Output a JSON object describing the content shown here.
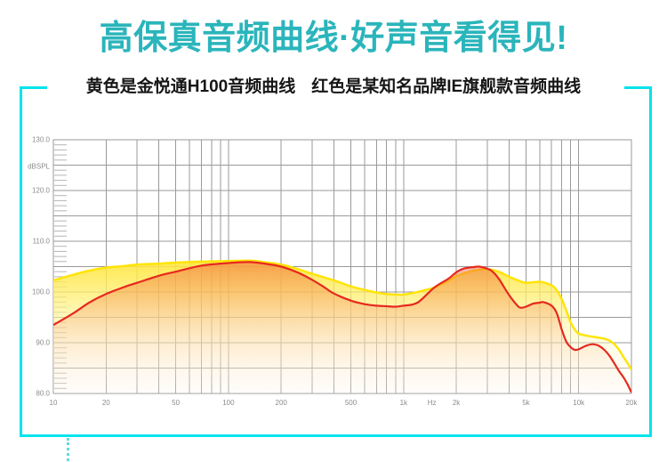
{
  "header": {
    "title": "高保真音频曲线·好声音看得见!",
    "subtitle_left": "黄色是金悦通H100音频曲线",
    "subtitle_right": "红色是某知名品牌IE旗舰款音频曲线"
  },
  "colors": {
    "title_teal": "#2ab5bb",
    "frame_cyan": "#00e4ee",
    "grid": "#9a9a9a",
    "minor_tick": "#b5b5b5",
    "axis_label": "#8c8c8c",
    "yellow_curve": "#ffe400",
    "red_curve": "#e6291f"
  },
  "chart_data": {
    "type": "line",
    "title": "",
    "x_axis": {
      "unit": "Hz",
      "scale": "log",
      "min": 10,
      "max": 20000,
      "tick_values": [
        10,
        20,
        50,
        100,
        200,
        500,
        1000,
        2000,
        5000,
        10000,
        20000
      ],
      "tick_labels": [
        "10",
        "20",
        "50",
        "100",
        "200",
        "500",
        "1k",
        "2k",
        "5k",
        "10k",
        "20k"
      ]
    },
    "y_axis": {
      "unit": "dBSPL",
      "min": 80,
      "max": 130,
      "label_step": 10,
      "grid_step": 5,
      "tick_labels": [
        "80.0",
        "90.0",
        "100.0",
        "110.0",
        "120.0",
        "130.0"
      ]
    },
    "grid": true,
    "legend": "none",
    "series": [
      {
        "name": "金悦通H100 (yellow)",
        "stroke": "#ffe400",
        "stroke_width": 2.4,
        "fill_gradient": [
          [
            0,
            "rgba(255,226,40,0.95)"
          ],
          [
            0.32,
            "rgba(255,238,110,0.72)"
          ],
          [
            0.65,
            "rgba(255,248,195,0.42)"
          ],
          [
            1,
            "rgba(255,253,242,0.12)"
          ]
        ],
        "points": [
          [
            10,
            102.3
          ],
          [
            13,
            103.4
          ],
          [
            16,
            104.2
          ],
          [
            20,
            104.8
          ],
          [
            25,
            105.1
          ],
          [
            30,
            105.4
          ],
          [
            40,
            105.6
          ],
          [
            50,
            105.8
          ],
          [
            70,
            106.0
          ],
          [
            100,
            106.1
          ],
          [
            130,
            106.2
          ],
          [
            160,
            105.9
          ],
          [
            200,
            105.4
          ],
          [
            250,
            104.5
          ],
          [
            300,
            103.6
          ],
          [
            400,
            102.3
          ],
          [
            500,
            101.1
          ],
          [
            600,
            100.4
          ],
          [
            700,
            99.9
          ],
          [
            800,
            99.6
          ],
          [
            900,
            99.5
          ],
          [
            1000,
            99.5
          ],
          [
            1200,
            100.0
          ],
          [
            1500,
            100.9
          ],
          [
            1800,
            102.2
          ],
          [
            2000,
            103.1
          ],
          [
            2500,
            104.2
          ],
          [
            3000,
            104.5
          ],
          [
            3500,
            104.0
          ],
          [
            4000,
            103.0
          ],
          [
            4500,
            102.3
          ],
          [
            5000,
            101.8
          ],
          [
            6000,
            102.0
          ],
          [
            7000,
            101.3
          ],
          [
            7500,
            100.3
          ],
          [
            8000,
            98.6
          ],
          [
            8500,
            96.3
          ],
          [
            9000,
            94.0
          ],
          [
            9500,
            92.6
          ],
          [
            10000,
            91.8
          ],
          [
            11000,
            91.4
          ],
          [
            12000,
            91.2
          ],
          [
            13000,
            91.0
          ],
          [
            14000,
            90.8
          ],
          [
            15000,
            90.4
          ],
          [
            16000,
            89.7
          ],
          [
            17000,
            88.6
          ],
          [
            18000,
            87.2
          ],
          [
            19000,
            86.0
          ],
          [
            20000,
            84.7
          ]
        ]
      },
      {
        "name": "某知名品牌IE旗舰款 (red)",
        "stroke": "#e6291f",
        "stroke_width": 2.2,
        "fill_gradient": [
          [
            0,
            "rgba(236,62,66,0.50)"
          ],
          [
            0.25,
            "rgba(242,128,66,0.42)"
          ],
          [
            0.6,
            "rgba(248,188,140,0.27)"
          ],
          [
            1,
            "rgba(252,238,228,0.08)"
          ]
        ],
        "points": [
          [
            10,
            93.5
          ],
          [
            13,
            95.8
          ],
          [
            16,
            97.9
          ],
          [
            20,
            99.6
          ],
          [
            25,
            100.9
          ],
          [
            30,
            101.8
          ],
          [
            40,
            103.2
          ],
          [
            50,
            104.0
          ],
          [
            70,
            105.2
          ],
          [
            100,
            105.7
          ],
          [
            130,
            105.9
          ],
          [
            160,
            105.6
          ],
          [
            200,
            105.0
          ],
          [
            250,
            103.8
          ],
          [
            300,
            102.4
          ],
          [
            350,
            101.0
          ],
          [
            400,
            99.7
          ],
          [
            500,
            98.3
          ],
          [
            600,
            97.6
          ],
          [
            700,
            97.3
          ],
          [
            800,
            97.2
          ],
          [
            900,
            97.1
          ],
          [
            1000,
            97.3
          ],
          [
            1200,
            97.9
          ],
          [
            1500,
            100.9
          ],
          [
            1800,
            102.6
          ],
          [
            2000,
            103.9
          ],
          [
            2200,
            104.6
          ],
          [
            2500,
            104.9
          ],
          [
            2700,
            105.0
          ],
          [
            3000,
            104.6
          ],
          [
            3200,
            104.1
          ],
          [
            3500,
            102.6
          ],
          [
            4000,
            99.4
          ],
          [
            4500,
            97.2
          ],
          [
            4700,
            96.9
          ],
          [
            5000,
            97.1
          ],
          [
            5500,
            97.7
          ],
          [
            6000,
            97.9
          ],
          [
            6300,
            98.0
          ],
          [
            7000,
            97.3
          ],
          [
            7500,
            95.8
          ],
          [
            8000,
            92.6
          ],
          [
            8500,
            90.2
          ],
          [
            9000,
            89.1
          ],
          [
            9500,
            88.6
          ],
          [
            10000,
            88.7
          ],
          [
            11000,
            89.4
          ],
          [
            12000,
            89.7
          ],
          [
            13000,
            89.4
          ],
          [
            14000,
            88.6
          ],
          [
            15000,
            87.4
          ],
          [
            16000,
            85.9
          ],
          [
            17000,
            84.4
          ],
          [
            18000,
            83.2
          ],
          [
            19000,
            81.8
          ],
          [
            20000,
            80.2
          ]
        ]
      }
    ]
  }
}
